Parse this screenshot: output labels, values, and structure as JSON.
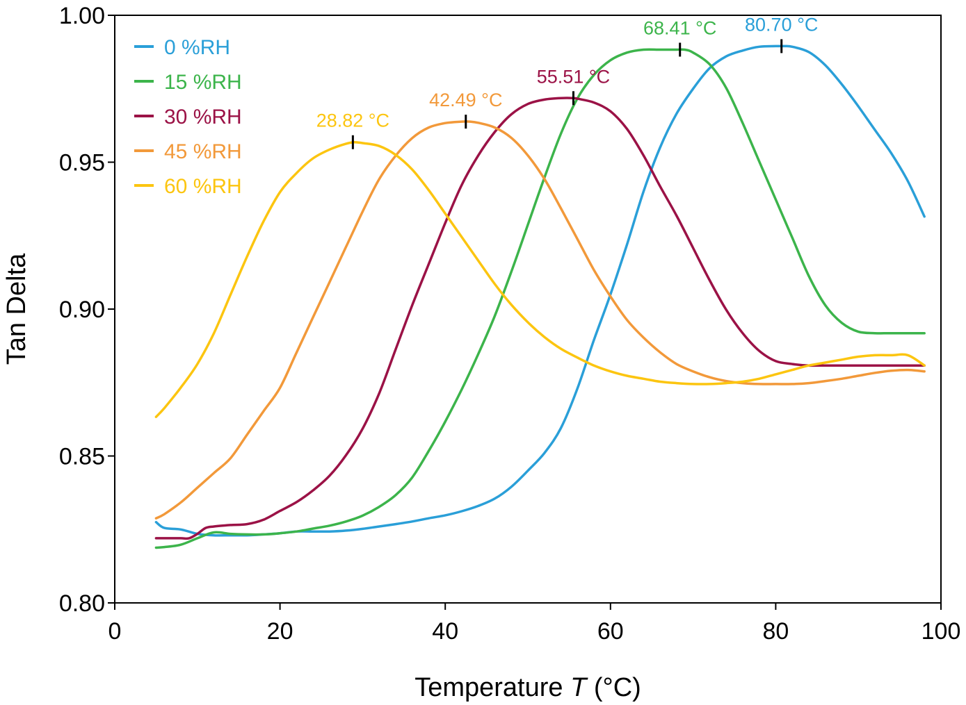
{
  "chart_data": {
    "type": "line",
    "xlabel": "Temperature ",
    "xlabel_var": "T",
    "xlabel_unit": " (°C)",
    "ylabel": "Tan Delta",
    "xlim": [
      0,
      100
    ],
    "ylim": [
      0.8,
      1.0
    ],
    "x_ticks": [
      0,
      20,
      40,
      60,
      80,
      100
    ],
    "x_tick_labels": [
      "0",
      "20",
      "40",
      "60",
      "80",
      "100"
    ],
    "y_ticks": [
      0.8,
      0.85,
      0.9,
      0.95,
      1.0
    ],
    "y_tick_labels": [
      "0.80",
      "0.85",
      "0.90",
      "0.95",
      "1.00"
    ],
    "grid": false,
    "legend_position": "top-left",
    "series": [
      {
        "name": "0 %RH",
        "color": "#2A9FD8",
        "peak": {
          "x": 80.7,
          "y": 0.9895,
          "label": "80.70 °C"
        },
        "points": [
          [
            5,
            0.8275
          ],
          [
            6,
            0.8255
          ],
          [
            8,
            0.825
          ],
          [
            10,
            0.8235
          ],
          [
            12,
            0.823
          ],
          [
            14,
            0.823
          ],
          [
            16,
            0.823
          ],
          [
            18,
            0.8233
          ],
          [
            20,
            0.8237
          ],
          [
            22,
            0.8243
          ],
          [
            24,
            0.8243
          ],
          [
            26,
            0.8243
          ],
          [
            28,
            0.8246
          ],
          [
            30,
            0.8252
          ],
          [
            32,
            0.826
          ],
          [
            34,
            0.8268
          ],
          [
            36,
            0.8277
          ],
          [
            38,
            0.8288
          ],
          [
            40,
            0.8298
          ],
          [
            42,
            0.8312
          ],
          [
            44,
            0.833
          ],
          [
            46,
            0.8355
          ],
          [
            48,
            0.8395
          ],
          [
            50,
            0.845
          ],
          [
            52,
            0.851
          ],
          [
            54,
            0.8595
          ],
          [
            56,
            0.873
          ],
          [
            58,
            0.8895
          ],
          [
            60,
            0.905
          ],
          [
            62,
            0.922
          ],
          [
            64,
            0.94
          ],
          [
            66,
            0.955
          ],
          [
            68,
            0.9665
          ],
          [
            70,
            0.975
          ],
          [
            72,
            0.982
          ],
          [
            74,
            0.986
          ],
          [
            76,
            0.988
          ],
          [
            78,
            0.9893
          ],
          [
            80,
            0.9895
          ],
          [
            81,
            0.9895
          ],
          [
            82,
            0.9893
          ],
          [
            84,
            0.9875
          ],
          [
            86,
            0.983
          ],
          [
            88,
            0.9765
          ],
          [
            90,
            0.969
          ],
          [
            92,
            0.961
          ],
          [
            94,
            0.953
          ],
          [
            96,
            0.9435
          ],
          [
            98,
            0.9315
          ]
        ]
      },
      {
        "name": "15 %RH",
        "color": "#3CB44B",
        "peak": {
          "x": 68.41,
          "y": 0.9883,
          "label": "68.41 °C"
        },
        "points": [
          [
            5,
            0.8188
          ],
          [
            6,
            0.819
          ],
          [
            8,
            0.8198
          ],
          [
            10,
            0.822
          ],
          [
            12,
            0.824
          ],
          [
            14,
            0.8235
          ],
          [
            16,
            0.8233
          ],
          [
            18,
            0.8233
          ],
          [
            20,
            0.8237
          ],
          [
            22,
            0.8243
          ],
          [
            24,
            0.8253
          ],
          [
            26,
            0.8263
          ],
          [
            28,
            0.8277
          ],
          [
            30,
            0.8297
          ],
          [
            32,
            0.8327
          ],
          [
            34,
            0.8367
          ],
          [
            36,
            0.8427
          ],
          [
            38,
            0.8517
          ],
          [
            40,
            0.8617
          ],
          [
            42,
            0.8727
          ],
          [
            44,
            0.8847
          ],
          [
            46,
            0.8977
          ],
          [
            48,
            0.9127
          ],
          [
            50,
            0.9287
          ],
          [
            52,
            0.9447
          ],
          [
            54,
            0.9597
          ],
          [
            56,
            0.9717
          ],
          [
            58,
            0.9797
          ],
          [
            60,
            0.9847
          ],
          [
            62,
            0.9873
          ],
          [
            64,
            0.9883
          ],
          [
            66,
            0.9883
          ],
          [
            68,
            0.9883
          ],
          [
            69,
            0.9883
          ],
          [
            70,
            0.9873
          ],
          [
            72,
            0.9833
          ],
          [
            74,
            0.9753
          ],
          [
            76,
            0.9633
          ],
          [
            78,
            0.9503
          ],
          [
            80,
            0.9373
          ],
          [
            82,
            0.9243
          ],
          [
            84,
            0.9113
          ],
          [
            86,
            0.9013
          ],
          [
            88,
            0.8953
          ],
          [
            90,
            0.8923
          ],
          [
            92,
            0.8918
          ],
          [
            94,
            0.8918
          ],
          [
            96,
            0.8918
          ],
          [
            98,
            0.8918
          ]
        ]
      },
      {
        "name": "30 %RH",
        "color": "#9B1246",
        "peak": {
          "x": 55.51,
          "y": 0.9718,
          "label": "55.51 °C"
        },
        "points": [
          [
            5,
            0.822
          ],
          [
            6,
            0.822
          ],
          [
            8,
            0.822
          ],
          [
            9,
            0.822
          ],
          [
            10,
            0.8235
          ],
          [
            11,
            0.8255
          ],
          [
            12,
            0.826
          ],
          [
            14,
            0.8265
          ],
          [
            16,
            0.8268
          ],
          [
            18,
            0.8283
          ],
          [
            20,
            0.8313
          ],
          [
            22,
            0.8343
          ],
          [
            24,
            0.8383
          ],
          [
            26,
            0.8433
          ],
          [
            28,
            0.8503
          ],
          [
            30,
            0.8593
          ],
          [
            32,
            0.8713
          ],
          [
            34,
            0.8863
          ],
          [
            36,
            0.9013
          ],
          [
            38,
            0.9153
          ],
          [
            40,
            0.9293
          ],
          [
            42,
            0.9423
          ],
          [
            44,
            0.9523
          ],
          [
            46,
            0.9603
          ],
          [
            48,
            0.9663
          ],
          [
            50,
            0.9698
          ],
          [
            52,
            0.9713
          ],
          [
            54,
            0.9718
          ],
          [
            55.5,
            0.9718
          ],
          [
            56,
            0.9716
          ],
          [
            58,
            0.9703
          ],
          [
            60,
            0.9673
          ],
          [
            62,
            0.9613
          ],
          [
            64,
            0.9523
          ],
          [
            66,
            0.9418
          ],
          [
            68,
            0.9318
          ],
          [
            70,
            0.9208
          ],
          [
            72,
            0.9098
          ],
          [
            74,
            0.8998
          ],
          [
            76,
            0.8918
          ],
          [
            78,
            0.8858
          ],
          [
            80,
            0.8823
          ],
          [
            82,
            0.8813
          ],
          [
            84,
            0.8808
          ],
          [
            86,
            0.8808
          ],
          [
            88,
            0.8808
          ],
          [
            90,
            0.8808
          ],
          [
            92,
            0.8808
          ],
          [
            94,
            0.8808
          ],
          [
            96,
            0.8808
          ],
          [
            98,
            0.8808
          ]
        ]
      },
      {
        "name": "45 %RH",
        "color": "#F2993A",
        "peak": {
          "x": 42.49,
          "y": 0.9638,
          "label": "42.49 °C"
        },
        "points": [
          [
            5,
            0.8288
          ],
          [
            6,
            0.8302
          ],
          [
            8,
            0.8342
          ],
          [
            10,
            0.8392
          ],
          [
            12,
            0.8442
          ],
          [
            14,
            0.8492
          ],
          [
            16,
            0.8572
          ],
          [
            18,
            0.8652
          ],
          [
            20,
            0.8732
          ],
          [
            22,
            0.8852
          ],
          [
            24,
            0.8972
          ],
          [
            26,
            0.9092
          ],
          [
            28,
            0.9212
          ],
          [
            30,
            0.9332
          ],
          [
            32,
            0.9442
          ],
          [
            34,
            0.9522
          ],
          [
            36,
            0.9582
          ],
          [
            38,
            0.9618
          ],
          [
            40,
            0.9633
          ],
          [
            42,
            0.9638
          ],
          [
            43,
            0.9638
          ],
          [
            44,
            0.9634
          ],
          [
            46,
            0.9618
          ],
          [
            48,
            0.9583
          ],
          [
            50,
            0.9523
          ],
          [
            52,
            0.9443
          ],
          [
            54,
            0.9343
          ],
          [
            56,
            0.9238
          ],
          [
            58,
            0.9133
          ],
          [
            60,
            0.9043
          ],
          [
            62,
            0.8963
          ],
          [
            64,
            0.8903
          ],
          [
            66,
            0.8853
          ],
          [
            68,
            0.8813
          ],
          [
            70,
            0.8788
          ],
          [
            72,
            0.8768
          ],
          [
            74,
            0.8755
          ],
          [
            76,
            0.8748
          ],
          [
            78,
            0.8745
          ],
          [
            80,
            0.8745
          ],
          [
            82,
            0.8745
          ],
          [
            84,
            0.8748
          ],
          [
            86,
            0.8755
          ],
          [
            88,
            0.8763
          ],
          [
            90,
            0.8773
          ],
          [
            92,
            0.8783
          ],
          [
            94,
            0.879
          ],
          [
            96,
            0.8793
          ],
          [
            98,
            0.8788
          ]
        ]
      },
      {
        "name": "60 %RH",
        "color": "#FCC510",
        "peak": {
          "x": 28.82,
          "y": 0.9568,
          "label": "28.82 °C"
        },
        "points": [
          [
            5,
            0.8633
          ],
          [
            6,
            0.8663
          ],
          [
            8,
            0.8733
          ],
          [
            10,
            0.8813
          ],
          [
            12,
            0.8918
          ],
          [
            14,
            0.9048
          ],
          [
            16,
            0.9178
          ],
          [
            18,
            0.9298
          ],
          [
            20,
            0.9398
          ],
          [
            22,
            0.9463
          ],
          [
            24,
            0.9513
          ],
          [
            26,
            0.9543
          ],
          [
            28,
            0.9563
          ],
          [
            29,
            0.9568
          ],
          [
            30,
            0.9565
          ],
          [
            32,
            0.9555
          ],
          [
            34,
            0.9525
          ],
          [
            36,
            0.9475
          ],
          [
            38,
            0.9405
          ],
          [
            40,
            0.9325
          ],
          [
            42,
            0.9245
          ],
          [
            44,
            0.9165
          ],
          [
            46,
            0.9085
          ],
          [
            48,
            0.9015
          ],
          [
            50,
            0.8955
          ],
          [
            52,
            0.8905
          ],
          [
            54,
            0.8865
          ],
          [
            56,
            0.8835
          ],
          [
            58,
            0.8808
          ],
          [
            60,
            0.8788
          ],
          [
            62,
            0.8773
          ],
          [
            64,
            0.8763
          ],
          [
            66,
            0.8753
          ],
          [
            68,
            0.8748
          ],
          [
            70,
            0.8745
          ],
          [
            72,
            0.8745
          ],
          [
            74,
            0.8748
          ],
          [
            76,
            0.8753
          ],
          [
            78,
            0.8763
          ],
          [
            80,
            0.8778
          ],
          [
            82,
            0.8793
          ],
          [
            84,
            0.8808
          ],
          [
            86,
            0.8818
          ],
          [
            88,
            0.8828
          ],
          [
            90,
            0.8838
          ],
          [
            92,
            0.8843
          ],
          [
            94,
            0.8843
          ],
          [
            96,
            0.8843
          ],
          [
            98,
            0.8808
          ]
        ]
      }
    ]
  }
}
